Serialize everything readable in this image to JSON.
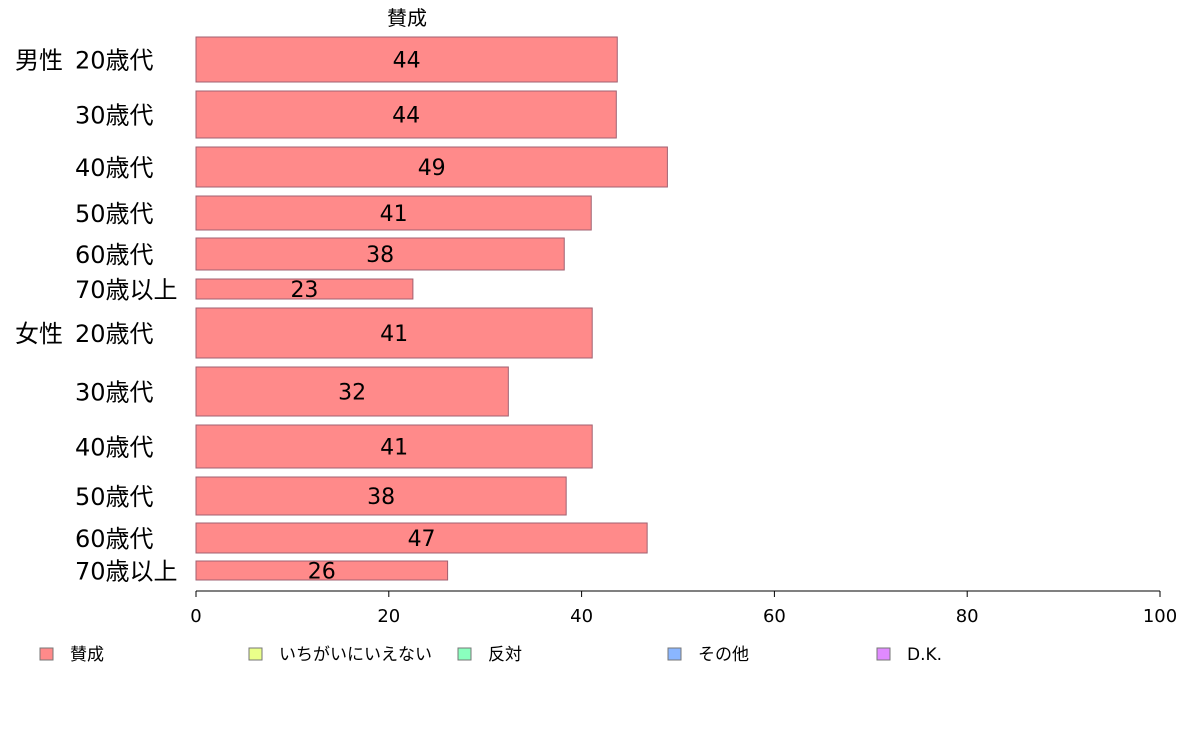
{
  "chart_data": {
    "type": "bar",
    "orientation": "horizontal",
    "title": "賛成",
    "groups": [
      "男性",
      "女性"
    ],
    "categories": [
      {
        "group": "男性",
        "label": "20歳代"
      },
      {
        "group": "",
        "label": "30歳代"
      },
      {
        "group": "",
        "label": "40歳代"
      },
      {
        "group": "",
        "label": "50歳代"
      },
      {
        "group": "",
        "label": "60歳代"
      },
      {
        "group": "",
        "label": "70歳以上"
      },
      {
        "group": "女性",
        "label": "20歳代"
      },
      {
        "group": "",
        "label": "30歳代"
      },
      {
        "group": "",
        "label": "40歳代"
      },
      {
        "group": "",
        "label": "50歳代"
      },
      {
        "group": "",
        "label": "60歳代"
      },
      {
        "group": "",
        "label": "70歳以上"
      }
    ],
    "values": [
      43.7,
      43.6,
      48.9,
      41.0,
      38.2,
      22.5,
      41.1,
      32.4,
      41.1,
      38.4,
      46.8,
      26.1
    ],
    "value_labels": [
      "44",
      "44",
      "49",
      "41",
      "38",
      "23",
      "41",
      "32",
      "41",
      "38",
      "47",
      "26"
    ],
    "xlim": [
      0,
      100
    ],
    "xticks": [
      "0",
      "20",
      "40",
      "60",
      "80",
      "100"
    ],
    "legend": [
      {
        "label": "賛成",
        "color": "#FF8A8A"
      },
      {
        "label": "いちがいにいえない",
        "color": "#EAFF8A"
      },
      {
        "label": "反対",
        "color": "#8AFFBE"
      },
      {
        "label": "その他",
        "color": "#8AB6FF"
      },
      {
        "label": "D.K.",
        "color": "#E08AFF"
      }
    ],
    "legend_position": "bottom",
    "bar_color": "#FF8A8A",
    "bar_stroke": "#A06070"
  }
}
